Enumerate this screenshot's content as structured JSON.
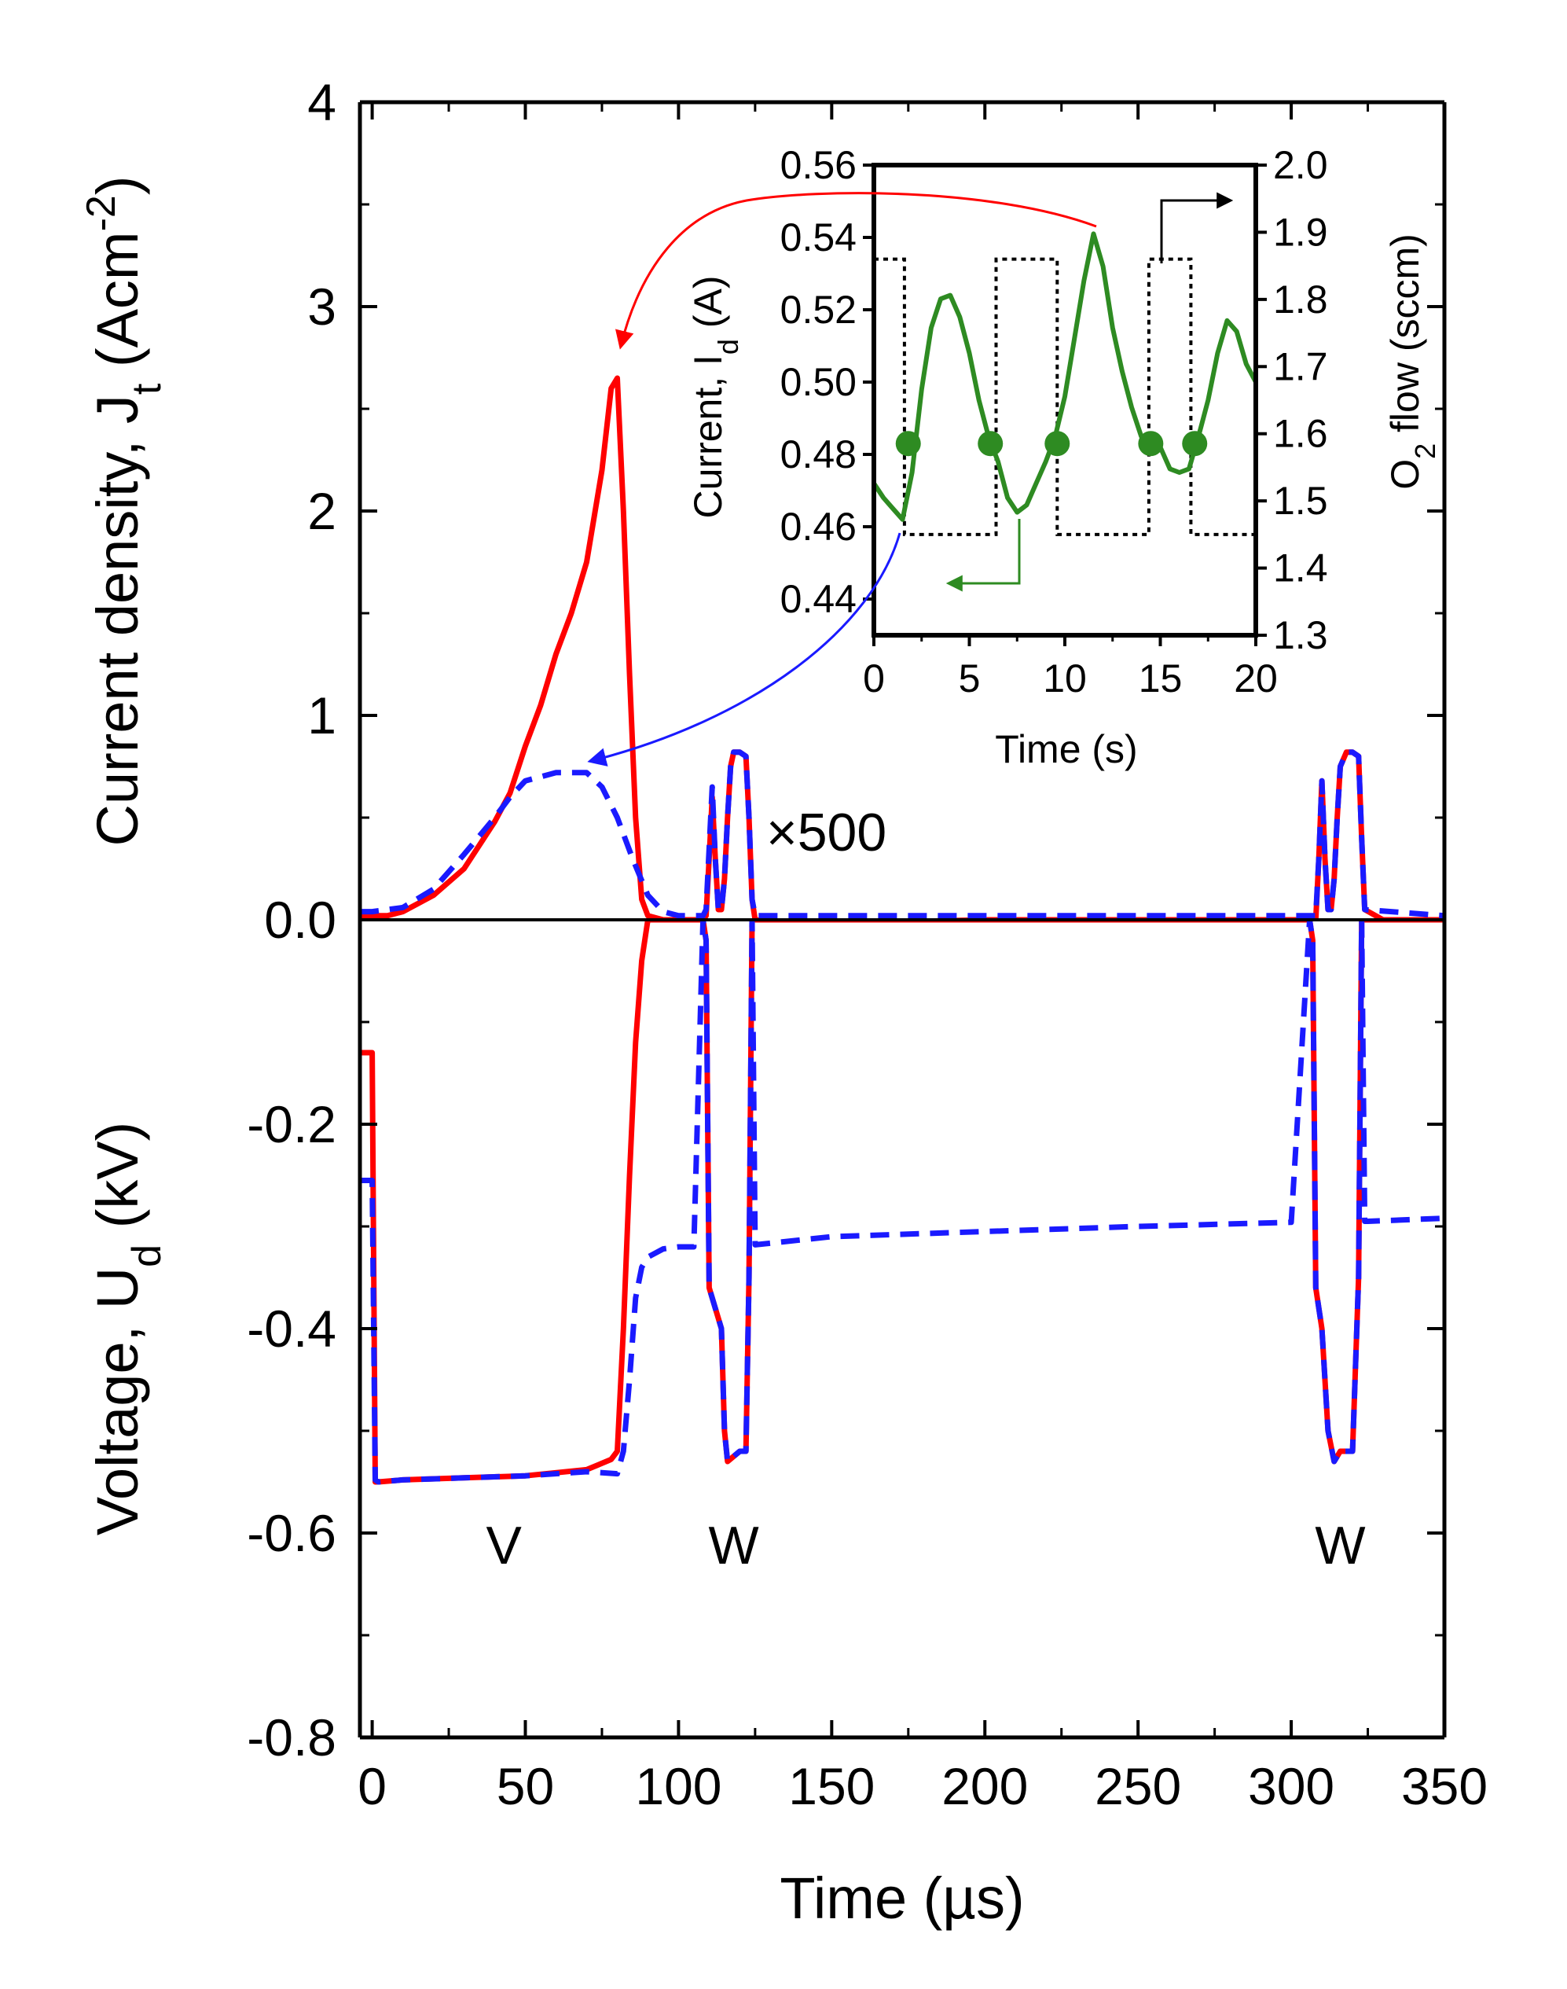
{
  "chart_data": {
    "type": "line",
    "x_axis": {
      "label": "Time (µs)",
      "range": [
        -4,
        350
      ],
      "ticks": [
        0,
        50,
        100,
        150,
        200,
        250,
        300,
        350
      ]
    },
    "top_panel": {
      "ylabel": "Current density, J",
      "ylabel_sub": "t",
      "ylabel_unit": " (Acm",
      "ylabel_sup": "-2",
      "ylabel_close": ")",
      "range": [
        0,
        4
      ],
      "ticks": [
        {
          "v": 1,
          "label": "1"
        },
        {
          "v": 2,
          "label": "2"
        },
        {
          "v": 3,
          "label": "3"
        },
        {
          "v": 4,
          "label": "4"
        }
      ],
      "series": [
        {
          "name": "red",
          "color": "#ff0000",
          "dash": "",
          "x": [
            -4,
            0,
            5,
            10,
            20,
            30,
            40,
            45,
            50,
            55,
            60,
            65,
            70,
            75,
            78,
            80,
            82,
            84,
            86,
            88,
            90,
            95,
            100,
            105,
            108,
            109,
            110,
            111,
            112,
            113,
            114,
            115,
            116,
            117,
            118,
            120,
            122,
            123,
            124,
            125,
            140,
            200,
            250,
            300,
            305,
            308,
            309,
            310,
            311,
            312,
            313,
            314,
            315,
            316,
            318,
            320,
            322,
            323,
            324,
            330,
            350
          ],
          "y": [
            0.02,
            0.02,
            0.02,
            0.04,
            0.12,
            0.25,
            0.48,
            0.62,
            0.85,
            1.05,
            1.3,
            1.5,
            1.75,
            2.2,
            2.6,
            2.65,
            2.0,
            1.2,
            0.5,
            0.1,
            0.02,
            0.0,
            0.0,
            0.0,
            0.0,
            0.02,
            0.3,
            0.6,
            0.3,
            0.05,
            0.05,
            0.2,
            0.5,
            0.75,
            0.82,
            0.82,
            0.8,
            0.5,
            0.1,
            0.0,
            -0.02,
            0.0,
            0.0,
            0.0,
            0.0,
            0.0,
            0.3,
            0.68,
            0.3,
            0.05,
            0.05,
            0.2,
            0.5,
            0.75,
            0.82,
            0.82,
            0.8,
            0.4,
            0.05,
            0.0,
            0.0
          ]
        },
        {
          "name": "blue",
          "color": "#1a1aff",
          "dash": "24,14",
          "x": [
            -4,
            0,
            10,
            20,
            30,
            40,
            45,
            50,
            60,
            65,
            70,
            75,
            80,
            85,
            90,
            95,
            100,
            108,
            109,
            110,
            111,
            112,
            113,
            114,
            115,
            116,
            117,
            118,
            120,
            122,
            123,
            124,
            125,
            200,
            300,
            308,
            309,
            310,
            311,
            312,
            313,
            314,
            315,
            316,
            318,
            320,
            322,
            323,
            324,
            350
          ],
          "y": [
            0.04,
            0.04,
            0.06,
            0.15,
            0.32,
            0.5,
            0.6,
            0.68,
            0.72,
            0.72,
            0.72,
            0.65,
            0.5,
            0.3,
            0.12,
            0.04,
            0.02,
            0.02,
            0.05,
            0.35,
            0.65,
            0.3,
            0.05,
            0.05,
            0.2,
            0.5,
            0.75,
            0.82,
            0.82,
            0.8,
            0.5,
            0.1,
            0.02,
            0.02,
            0.02,
            0.02,
            0.3,
            0.68,
            0.3,
            0.05,
            0.05,
            0.2,
            0.5,
            0.75,
            0.82,
            0.82,
            0.8,
            0.4,
            0.05,
            0.02
          ]
        }
      ],
      "annotation": "×500",
      "zero_line": true
    },
    "bottom_panel": {
      "ylabel": "Voltage, U",
      "ylabel_sub": "d",
      "ylabel_unit": " (kV)",
      "range": [
        -0.8,
        0
      ],
      "ticks": [
        {
          "v": 0,
          "label": "0.0"
        },
        {
          "v": -0.2,
          "label": "-0.2"
        },
        {
          "v": -0.4,
          "label": "-0.4"
        },
        {
          "v": -0.6,
          "label": "-0.6"
        },
        {
          "v": -0.8,
          "label": "-0.8"
        }
      ],
      "series": [
        {
          "name": "red",
          "color": "#ff0000",
          "dash": "",
          "x": [
            -4,
            0,
            1,
            2,
            10,
            30,
            50,
            70,
            78,
            80,
            82,
            84,
            86,
            88,
            90,
            95,
            100,
            105,
            108,
            109,
            110,
            112,
            114,
            115,
            116,
            118,
            120,
            122,
            123,
            124,
            200,
            300,
            306,
            307,
            308,
            309,
            310,
            312,
            314,
            315,
            316,
            318,
            320,
            322,
            323,
            324,
            350
          ],
          "y": [
            -0.13,
            -0.13,
            -0.55,
            -0.55,
            -0.548,
            -0.546,
            -0.544,
            -0.538,
            -0.528,
            -0.52,
            -0.4,
            -0.25,
            -0.12,
            -0.04,
            0.0,
            0.0,
            0.0,
            0.0,
            0.0,
            -0.02,
            -0.36,
            -0.38,
            -0.4,
            -0.5,
            -0.53,
            -0.525,
            -0.52,
            -0.52,
            -0.35,
            0.0,
            0.0,
            0.0,
            0.0,
            -0.02,
            -0.36,
            -0.38,
            -0.4,
            -0.5,
            -0.53,
            -0.525,
            -0.52,
            -0.52,
            -0.52,
            -0.35,
            0.0,
            0.0,
            0.0
          ]
        },
        {
          "name": "blue",
          "color": "#1a1aff",
          "dash": "24,14",
          "x": [
            -4,
            0,
            1,
            2,
            10,
            30,
            50,
            70,
            80,
            82,
            84,
            86,
            88,
            90,
            95,
            100,
            105,
            108,
            109,
            110,
            112,
            114,
            115,
            116,
            118,
            120,
            122,
            123,
            124,
            125,
            150,
            200,
            250,
            300,
            306,
            307,
            308,
            309,
            310,
            312,
            314,
            315,
            316,
            318,
            320,
            322,
            323,
            324,
            325,
            350
          ],
          "y": [
            -0.255,
            -0.255,
            -0.548,
            -0.55,
            -0.548,
            -0.546,
            -0.544,
            -0.54,
            -0.542,
            -0.52,
            -0.45,
            -0.37,
            -0.34,
            -0.33,
            -0.322,
            -0.32,
            -0.32,
            0.0,
            -0.02,
            -0.36,
            -0.38,
            -0.4,
            -0.5,
            -0.53,
            -0.525,
            -0.52,
            -0.52,
            -0.35,
            0.0,
            -0.318,
            -0.31,
            -0.305,
            -0.3,
            -0.296,
            0.0,
            -0.02,
            -0.36,
            -0.38,
            -0.4,
            -0.5,
            -0.53,
            -0.525,
            -0.52,
            -0.52,
            -0.52,
            -0.35,
            0.0,
            -0.295,
            -0.295,
            -0.292
          ]
        }
      ],
      "region_labels": [
        {
          "x": 43,
          "y": -0.63,
          "text": "V"
        },
        {
          "x": 118,
          "y": -0.63,
          "text": "W"
        },
        {
          "x": 316,
          "y": -0.63,
          "text": "W"
        }
      ]
    },
    "inset": {
      "xlabel": "Time (s)",
      "x_range": [
        0,
        20
      ],
      "x_ticks": [
        0,
        5,
        10,
        15,
        20
      ],
      "ylabel_left": "Current, I",
      "ylabel_left_sub": "d",
      "ylabel_left_unit": " (A)",
      "y_left_range": [
        0.43,
        0.56
      ],
      "y_left_ticks": [
        {
          "v": 0.56,
          "label": "0.56"
        },
        {
          "v": 0.54,
          "label": "0.54"
        },
        {
          "v": 0.52,
          "label": "0.52"
        },
        {
          "v": 0.5,
          "label": "0.50"
        },
        {
          "v": 0.48,
          "label": "0.48"
        },
        {
          "v": 0.46,
          "label": "0.46"
        },
        {
          "v": 0.44,
          "label": "0.44"
        }
      ],
      "ylabel_right": "O",
      "ylabel_right_sub": "2",
      "ylabel_right_unit": " flow (sccm)",
      "y_right_range": [
        1.3,
        2.0
      ],
      "y_right_ticks": [
        {
          "v": 2.0,
          "label": "2.0"
        },
        {
          "v": 1.9,
          "label": "1.9"
        },
        {
          "v": 1.8,
          "label": "1.8"
        },
        {
          "v": 1.7,
          "label": "1.7"
        },
        {
          "v": 1.6,
          "label": "1.6"
        },
        {
          "v": 1.5,
          "label": "1.5"
        },
        {
          "v": 1.4,
          "label": "1.4"
        },
        {
          "v": 1.3,
          "label": "1.3"
        }
      ],
      "current_series": {
        "color": "#2e8b22",
        "x": [
          0,
          0.5,
          1,
          1.5,
          2,
          2.5,
          3,
          3.5,
          4,
          4.5,
          5,
          5.5,
          6,
          6.5,
          7,
          7.5,
          8,
          8.5,
          9,
          9.5,
          10,
          10.5,
          11,
          11.5,
          12,
          12.5,
          13,
          13.5,
          14,
          14.5,
          15,
          15.5,
          16,
          16.5,
          17,
          17.5,
          18,
          18.5,
          19,
          19.5,
          20
        ],
        "y": [
          0.472,
          0.468,
          0.465,
          0.462,
          0.475,
          0.498,
          0.515,
          0.523,
          0.524,
          0.518,
          0.508,
          0.495,
          0.485,
          0.478,
          0.468,
          0.464,
          0.466,
          0.472,
          0.478,
          0.485,
          0.496,
          0.512,
          0.528,
          0.541,
          0.532,
          0.515,
          0.503,
          0.493,
          0.485,
          0.483,
          0.482,
          0.476,
          0.475,
          0.476,
          0.485,
          0.495,
          0.508,
          0.517,
          0.514,
          0.505,
          0.5
        ]
      },
      "markers": {
        "color": "#2e8b22",
        "x": [
          1.8,
          6.1,
          9.6,
          14.5,
          16.8
        ],
        "y": [
          0.483,
          0.483,
          0.483,
          0.483,
          0.483
        ]
      },
      "flow_series": {
        "color": "#000000",
        "x": [
          0,
          1.6,
          1.6,
          6.4,
          6.4,
          9.6,
          9.6,
          14.4,
          14.4,
          16.6,
          16.6,
          20
        ],
        "y": [
          1.86,
          1.86,
          1.45,
          1.45,
          1.86,
          1.86,
          1.45,
          1.45,
          1.86,
          1.86,
          1.45,
          1.45
        ]
      }
    }
  }
}
